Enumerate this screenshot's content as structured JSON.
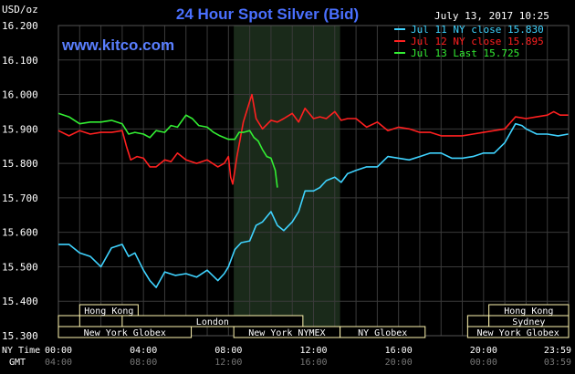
{
  "header": {
    "title": "24 Hour Spot Silver (Bid)",
    "unit": "USD/oz",
    "date": "July 13, 2017 10:25",
    "watermark": "www.kitco.com"
  },
  "colors": {
    "background": "#000000",
    "grid": "#3a3a3a",
    "nymex_shade": "#1a2a1a",
    "title": "#4a70ff",
    "jul11": "#3fd3ff",
    "jul12": "#ff2020",
    "jul13": "#33ee33",
    "session_box": "#fff6b0"
  },
  "legend": [
    {
      "label": "Jul 11 NY close 15.830",
      "color": "#3fd3ff"
    },
    {
      "label": "Jul 12 NY close 15.895",
      "color": "#ff2020"
    },
    {
      "label": "Jul 13 Last 15.725",
      "color": "#33ee33"
    }
  ],
  "sessions": {
    "row1": [
      {
        "label": "Hong Kong",
        "start": 1.0,
        "end": 3.75
      },
      {
        "label": "Hong Kong",
        "start": 20.25,
        "end": 24.0
      }
    ],
    "row2": [
      {
        "label": "",
        "start": 0.0,
        "end": 1.0
      },
      {
        "label": "London",
        "start": 3.0,
        "end": 11.5
      },
      {
        "label": "",
        "start": 19.25,
        "end": 20.25
      },
      {
        "label": "Sydney",
        "start": 20.25,
        "end": 24.0
      }
    ],
    "row3": [
      {
        "label": "New York Globex",
        "start": 0.0,
        "end": 6.25
      },
      {
        "label": "New York NYMEX",
        "start": 8.25,
        "end": 13.25
      },
      {
        "label": "NY Globex",
        "start": 13.25,
        "end": 17.25
      },
      {
        "label": "New York Globex",
        "start": 19.25,
        "end": 24.0
      }
    ]
  },
  "time_labels": {
    "ny_label": "NY Time",
    "gmt_label": "GMT",
    "ny": [
      "00:00",
      "04:00",
      "08:00",
      "12:00",
      "16:00",
      "20:00",
      "23:59"
    ],
    "gmt": [
      "04:00",
      "08:00",
      "12:00",
      "16:00",
      "20:00",
      "00:00",
      "03:59"
    ]
  },
  "chart_data": {
    "type": "line",
    "title": "24 Hour Spot Silver (Bid)",
    "ylabel": "USD/oz",
    "xlabel": "NY Time",
    "xlim": [
      0,
      24
    ],
    "ylim": [
      15.3,
      16.2
    ],
    "y_ticks": [
      "15.300",
      "15.400",
      "15.500",
      "15.600",
      "15.700",
      "15.800",
      "15.900",
      "16.000",
      "16.100",
      "16.200"
    ],
    "nymex_shade": [
      8.25,
      13.25
    ],
    "series": [
      {
        "name": "Jul 11 NY close 15.830",
        "color": "#3fd3ff",
        "points": [
          [
            0,
            15.565
          ],
          [
            0.5,
            15.565
          ],
          [
            1,
            15.54
          ],
          [
            1.5,
            15.53
          ],
          [
            2,
            15.5
          ],
          [
            2.5,
            15.555
          ],
          [
            3,
            15.565
          ],
          [
            3.3,
            15.53
          ],
          [
            3.6,
            15.54
          ],
          [
            4,
            15.49
          ],
          [
            4.3,
            15.46
          ],
          [
            4.6,
            15.44
          ],
          [
            5,
            15.485
          ],
          [
            5.5,
            15.475
          ],
          [
            6,
            15.48
          ],
          [
            6.5,
            15.47
          ],
          [
            7,
            15.49
          ],
          [
            7.5,
            15.46
          ],
          [
            7.8,
            15.48
          ],
          [
            8,
            15.5
          ],
          [
            8.3,
            15.55
          ],
          [
            8.6,
            15.57
          ],
          [
            9,
            15.575
          ],
          [
            9.3,
            15.62
          ],
          [
            9.6,
            15.63
          ],
          [
            10,
            15.66
          ],
          [
            10.3,
            15.62
          ],
          [
            10.6,
            15.605
          ],
          [
            11,
            15.63
          ],
          [
            11.3,
            15.66
          ],
          [
            11.6,
            15.72
          ],
          [
            12,
            15.72
          ],
          [
            12.3,
            15.73
          ],
          [
            12.6,
            15.75
          ],
          [
            13,
            15.76
          ],
          [
            13.3,
            15.745
          ],
          [
            13.6,
            15.77
          ],
          [
            14,
            15.78
          ],
          [
            14.5,
            15.79
          ],
          [
            15,
            15.79
          ],
          [
            15.5,
            15.82
          ],
          [
            16,
            15.815
          ],
          [
            16.5,
            15.81
          ],
          [
            17,
            15.82
          ],
          [
            17.5,
            15.83
          ],
          [
            18,
            15.83
          ],
          [
            18.5,
            15.815
          ],
          [
            19,
            15.815
          ],
          [
            19.5,
            15.82
          ],
          [
            20,
            15.83
          ],
          [
            20.5,
            15.83
          ],
          [
            21,
            15.86
          ],
          [
            21.5,
            15.915
          ],
          [
            21.8,
            15.91
          ],
          [
            22,
            15.9
          ],
          [
            22.5,
            15.885
          ],
          [
            23,
            15.885
          ],
          [
            23.5,
            15.88
          ],
          [
            23.98,
            15.885
          ]
        ]
      },
      {
        "name": "Jul 12 NY close 15.895",
        "color": "#ff2020",
        "points": [
          [
            0,
            15.895
          ],
          [
            0.5,
            15.88
          ],
          [
            1,
            15.895
          ],
          [
            1.5,
            15.885
          ],
          [
            2,
            15.89
          ],
          [
            2.5,
            15.89
          ],
          [
            3,
            15.895
          ],
          [
            3.2,
            15.85
          ],
          [
            3.4,
            15.81
          ],
          [
            3.7,
            15.82
          ],
          [
            4,
            15.815
          ],
          [
            4.3,
            15.79
          ],
          [
            4.6,
            15.79
          ],
          [
            5,
            15.81
          ],
          [
            5.3,
            15.805
          ],
          [
            5.6,
            15.83
          ],
          [
            6,
            15.81
          ],
          [
            6.5,
            15.8
          ],
          [
            7,
            15.81
          ],
          [
            7.5,
            15.79
          ],
          [
            7.8,
            15.8
          ],
          [
            8,
            15.82
          ],
          [
            8.1,
            15.76
          ],
          [
            8.2,
            15.74
          ],
          [
            8.4,
            15.82
          ],
          [
            8.7,
            15.92
          ],
          [
            9,
            15.98
          ],
          [
            9.1,
            16.0
          ],
          [
            9.3,
            15.93
          ],
          [
            9.6,
            15.9
          ],
          [
            10,
            15.925
          ],
          [
            10.3,
            15.92
          ],
          [
            10.6,
            15.93
          ],
          [
            11,
            15.945
          ],
          [
            11.3,
            15.92
          ],
          [
            11.6,
            15.96
          ],
          [
            12,
            15.93
          ],
          [
            12.3,
            15.935
          ],
          [
            12.6,
            15.93
          ],
          [
            13,
            15.95
          ],
          [
            13.3,
            15.925
          ],
          [
            13.6,
            15.93
          ],
          [
            14,
            15.93
          ],
          [
            14.5,
            15.905
          ],
          [
            15,
            15.92
          ],
          [
            15.5,
            15.895
          ],
          [
            16,
            15.905
          ],
          [
            16.5,
            15.9
          ],
          [
            17,
            15.89
          ],
          [
            17.5,
            15.89
          ],
          [
            18,
            15.88
          ],
          [
            18.5,
            15.88
          ],
          [
            19,
            15.88
          ],
          [
            19.5,
            15.885
          ],
          [
            20,
            15.89
          ],
          [
            20.5,
            15.895
          ],
          [
            21,
            15.9
          ],
          [
            21.5,
            15.935
          ],
          [
            22,
            15.93
          ],
          [
            22.5,
            15.935
          ],
          [
            23,
            15.94
          ],
          [
            23.3,
            15.95
          ],
          [
            23.6,
            15.94
          ],
          [
            23.98,
            15.94
          ]
        ]
      },
      {
        "name": "Jul 13 Last 15.725",
        "color": "#33ee33",
        "points": [
          [
            0,
            15.945
          ],
          [
            0.5,
            15.935
          ],
          [
            1,
            15.915
          ],
          [
            1.5,
            15.92
          ],
          [
            2,
            15.92
          ],
          [
            2.5,
            15.925
          ],
          [
            3,
            15.915
          ],
          [
            3.3,
            15.885
          ],
          [
            3.6,
            15.89
          ],
          [
            4,
            15.885
          ],
          [
            4.3,
            15.875
          ],
          [
            4.6,
            15.895
          ],
          [
            5,
            15.89
          ],
          [
            5.3,
            15.91
          ],
          [
            5.6,
            15.905
          ],
          [
            6,
            15.94
          ],
          [
            6.3,
            15.93
          ],
          [
            6.6,
            15.91
          ],
          [
            7,
            15.905
          ],
          [
            7.3,
            15.89
          ],
          [
            7.6,
            15.88
          ],
          [
            8,
            15.87
          ],
          [
            8.3,
            15.87
          ],
          [
            8.5,
            15.89
          ],
          [
            8.7,
            15.89
          ],
          [
            9,
            15.895
          ],
          [
            9.2,
            15.875
          ],
          [
            9.4,
            15.865
          ],
          [
            9.6,
            15.84
          ],
          [
            9.8,
            15.82
          ],
          [
            10,
            15.815
          ],
          [
            10.2,
            15.78
          ],
          [
            10.3,
            15.73
          ]
        ]
      }
    ]
  }
}
